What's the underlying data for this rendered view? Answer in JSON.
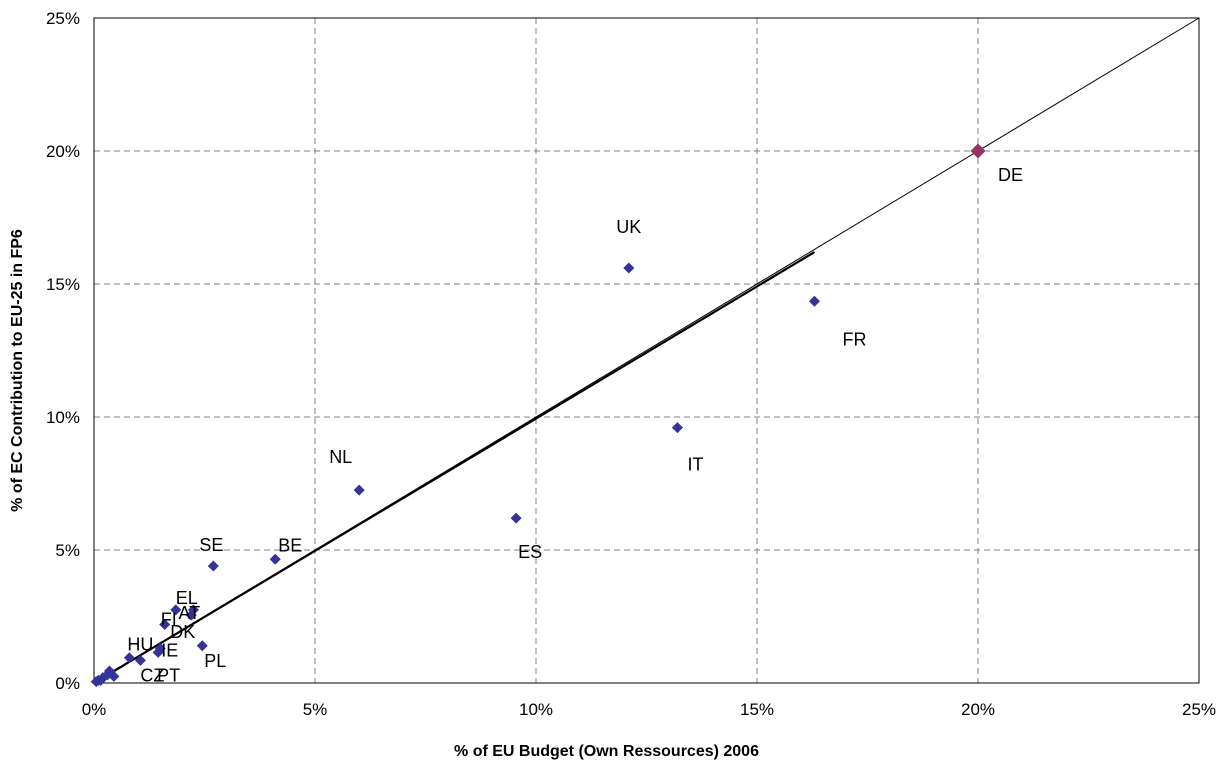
{
  "chart_data": {
    "type": "scatter",
    "title": "",
    "xlabel": "% of EU Budget (Own Ressources) 2006",
    "ylabel": "% of EC Contribution to EU-25 in FP6",
    "xlim": [
      0,
      25
    ],
    "ylim": [
      0,
      25
    ],
    "x_ticks": [
      "0%",
      "5%",
      "10%",
      "15%",
      "20%",
      "25%"
    ],
    "y_ticks": [
      "0%",
      "5%",
      "10%",
      "15%",
      "20%",
      "25%"
    ],
    "grid": true,
    "reference_line": {
      "from": [
        0,
        0
      ],
      "to": [
        25,
        25
      ]
    },
    "trend_line": {
      "from": [
        0,
        0
      ],
      "to": [
        16.3,
        16.2
      ]
    },
    "colors": {
      "points": "#333399",
      "highlight": "#993366",
      "grid": "#808080"
    },
    "points": [
      {
        "label": "DE",
        "x": 20.0,
        "y": 20.0,
        "highlight": true
      },
      {
        "label": "UK",
        "x": 12.1,
        "y": 15.6
      },
      {
        "label": "FR",
        "x": 16.3,
        "y": 14.35
      },
      {
        "label": "IT",
        "x": 13.2,
        "y": 9.6
      },
      {
        "label": "NL",
        "x": 6.0,
        "y": 7.25
      },
      {
        "label": "ES",
        "x": 9.55,
        "y": 6.2
      },
      {
        "label": "BE",
        "x": 4.1,
        "y": 4.65
      },
      {
        "label": "SE",
        "x": 2.7,
        "y": 4.4
      },
      {
        "label": "EL",
        "x": 1.85,
        "y": 2.75
      },
      {
        "label": "AT",
        "x": 2.25,
        "y": 2.75
      },
      {
        "label": "DK",
        "x": 2.2,
        "y": 2.55
      },
      {
        "label": "FI",
        "x": 1.6,
        "y": 2.2
      },
      {
        "label": "PL",
        "x": 2.45,
        "y": 1.4
      },
      {
        "label": "IE",
        "x": 1.5,
        "y": 1.3
      },
      {
        "label": "PT",
        "x": 1.45,
        "y": 1.15
      },
      {
        "label": "HU",
        "x": 0.8,
        "y": 0.95
      },
      {
        "label": "CZ",
        "x": 1.05,
        "y": 0.85
      },
      {
        "label": "",
        "x": 0.35,
        "y": 0.45
      },
      {
        "label": "",
        "x": 0.3,
        "y": 0.3
      },
      {
        "label": "",
        "x": 0.45,
        "y": 0.25
      },
      {
        "label": "",
        "x": 0.2,
        "y": 0.2
      },
      {
        "label": "",
        "x": 0.1,
        "y": 0.1
      },
      {
        "label": "",
        "x": 0.05,
        "y": 0.05
      },
      {
        "label": "",
        "x": 0.15,
        "y": 0.1
      }
    ]
  }
}
